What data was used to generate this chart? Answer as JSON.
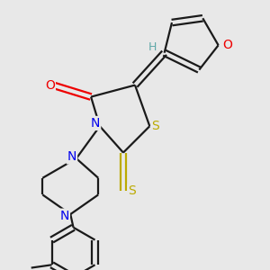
{
  "bg_color": "#e8e8e8",
  "bond_color": "#1a1a1a",
  "bond_width": 1.6,
  "atom_colors": {
    "H": "#5fa8a8",
    "N": "#0000ee",
    "O": "#ee0000",
    "S": "#bbaa00"
  },
  "font_size": 10,
  "fig_size": [
    3.0,
    3.0
  ],
  "dpi": 100
}
